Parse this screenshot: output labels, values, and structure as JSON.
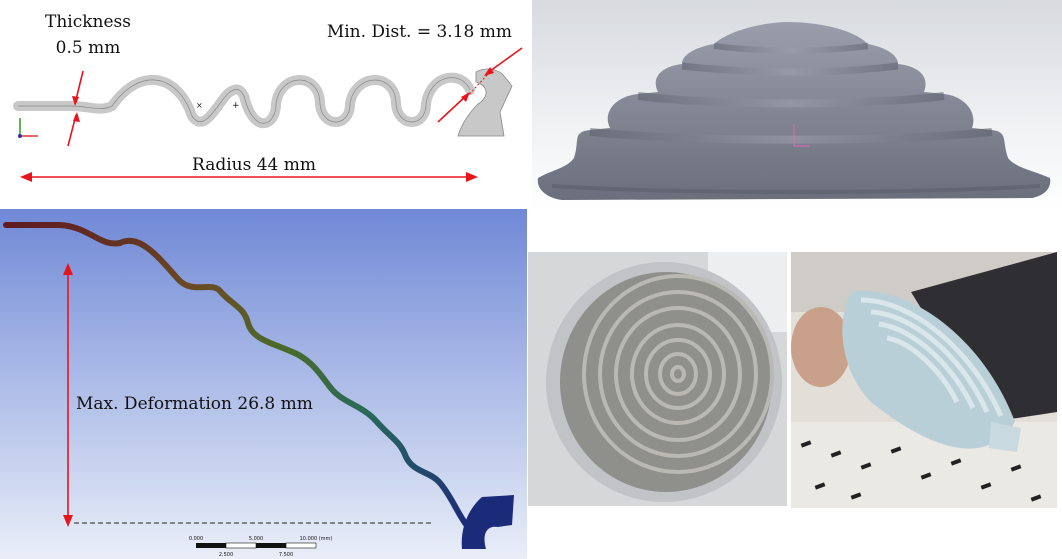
{
  "annotations": {
    "thickness_title": "Thickness",
    "thickness_value": "0.5 mm",
    "min_dist": "Min. Dist. = 3.18 mm",
    "radius": "Radius 44 mm",
    "max_deformation": "Max. Deformation 26.8 mm"
  },
  "scale_bar": {
    "ticks": [
      "0.000",
      "5.000",
      "10.000 (mm)"
    ],
    "sub_ticks": [
      "2.500",
      "7.500"
    ]
  },
  "colors": {
    "arrow": "#e8141c",
    "part_gray": "#c8c8c8",
    "render_gray": "#7c808e",
    "fea_bg_top": "#7089d6",
    "fea_mesh_dark": "#5e1b22"
  }
}
